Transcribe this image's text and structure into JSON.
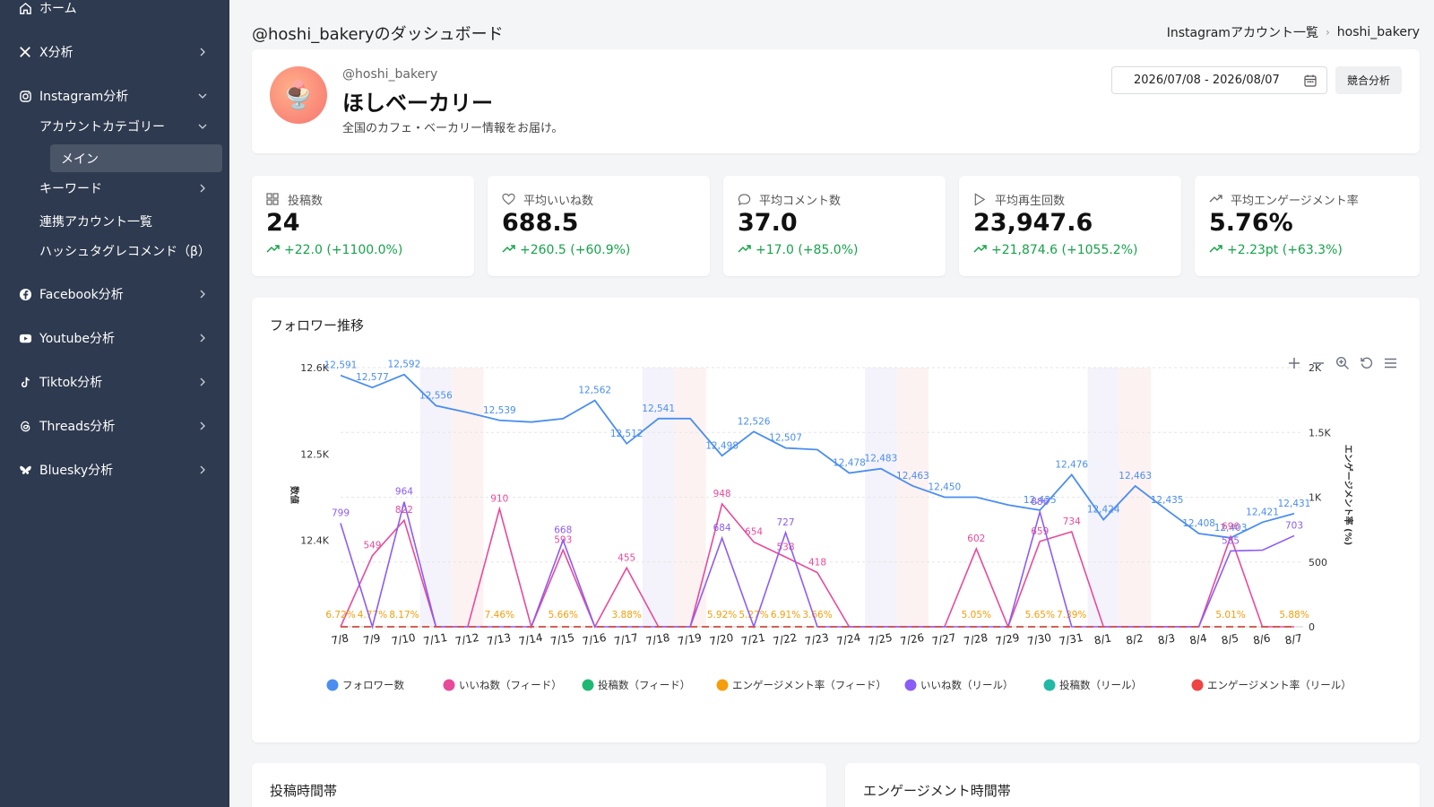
{
  "sidebar": {
    "home": "ホーム",
    "x": "X分析",
    "instagram": "Instagram分析",
    "category": "アカウントカテゴリー",
    "main": "メイン",
    "keyword": "キーワード",
    "linked": "連携アカウント一覧",
    "hashtag": "ハッシュタグレコメンド（β）",
    "facebook": "Facebook分析",
    "youtube": "Youtube分析",
    "tiktok": "Tiktok分析",
    "threads": "Threads分析",
    "bluesky": "Bluesky分析"
  },
  "header": {
    "title": "@hoshi_bakeryのダッシュボード",
    "breadcrumb_parent": "Instagramアカウント一覧",
    "breadcrumb_current": "hoshi_bakery"
  },
  "profile": {
    "handle": "@hoshi_bakery",
    "name": "ほしベーカリー",
    "description": "全国のカフェ・ベーカリー情報をお届け。",
    "date_range": "2026/07/08 - 2026/08/07",
    "compete_label": "競合分析",
    "avatar_emoji": "🍨"
  },
  "stats": [
    {
      "label": "投稿数",
      "value": "24",
      "delta": "+22.0 (+1100.0%)",
      "icon": "grid-icon"
    },
    {
      "label": "平均いいね数",
      "value": "688.5",
      "delta": "+260.5 (+60.9%)",
      "icon": "heart-icon"
    },
    {
      "label": "平均コメント数",
      "value": "37.0",
      "delta": "+17.0 (+85.0%)",
      "icon": "comment-icon"
    },
    {
      "label": "平均再生回数",
      "value": "23,947.6",
      "delta": "+21,874.6 (+1055.2%)",
      "icon": "play-icon"
    },
    {
      "label": "平均エンゲージメント率",
      "value": "5.76%",
      "delta": "+2.23pt (+63.3%)",
      "icon": "trend-icon"
    }
  ],
  "sections": {
    "post_time": "投稿時間帯",
    "engagement_time": "エンゲージメント時間帯"
  },
  "chart_data": {
    "type": "line",
    "title": "フォロワー推移",
    "ylabel_left": "数値",
    "ylabel_right": "エンゲージメント率 (%)",
    "left_ticks": [
      "12.6K",
      "12.5K",
      "12.4K"
    ],
    "right_ticks": [
      "2K",
      "1.5K",
      "1K",
      "500",
      "0"
    ],
    "ylim_left": [
      12300,
      12600
    ],
    "ylim_right": [
      0,
      2000
    ],
    "legend_position": "bottom",
    "categories": [
      "7/8",
      "7/9",
      "7/10",
      "7/11",
      "7/12",
      "7/13",
      "7/14",
      "7/15",
      "7/16",
      "7/17",
      "7/18",
      "7/19",
      "7/20",
      "7/21",
      "7/22",
      "7/23",
      "7/24",
      "7/25",
      "7/26",
      "7/27",
      "7/28",
      "7/29",
      "7/30",
      "7/31",
      "8/1",
      "8/2",
      "8/3",
      "8/4",
      "8/5",
      "8/6",
      "8/7"
    ],
    "series": [
      {
        "name": "フォロワー数",
        "color": "#4a8ef0",
        "axis": "left",
        "values": [
          12591,
          12577,
          12592,
          12556,
          12548,
          12539,
          12537,
          12541,
          12562,
          12512,
          12541,
          12541,
          12498,
          12526,
          12507,
          12505,
          12478,
          12483,
          12463,
          12450,
          12450,
          12441,
          12435,
          12476,
          12424,
          12463,
          12435,
          12408,
          12403,
          12421,
          12431
        ],
        "labels": [
          "12,591",
          "12,577",
          "12,592",
          "12,556",
          "",
          "12,539",
          "",
          "",
          "12,562",
          "12,512",
          "12,541",
          "",
          "12,498",
          "12,526",
          "12,507",
          "",
          "12,478",
          "12,483",
          "12,463",
          "12,450",
          "",
          "",
          "12,435",
          "12,476",
          "12,424",
          "12,463",
          "12,435",
          "12,408",
          "12,403",
          "12,421",
          "12,431"
        ]
      },
      {
        "name": "いいね数（フィード）",
        "color": "#e84a9a",
        "axis": "right",
        "values": [
          0,
          549,
          822,
          0,
          0,
          910,
          0,
          593,
          0,
          455,
          0,
          0,
          948,
          654,
          538,
          418,
          0,
          0,
          0,
          0,
          602,
          0,
          659,
          734,
          0,
          0,
          0,
          0,
          696,
          0,
          0
        ],
        "labels": [
          "",
          "549",
          "822",
          "",
          "",
          "910",
          "",
          "593",
          "",
          "455",
          "",
          "",
          "948",
          "654",
          "538",
          "418",
          "",
          "",
          "",
          "",
          "602",
          "",
          "659",
          "734",
          "",
          "",
          "",
          "",
          "696",
          "",
          ""
        ]
      },
      {
        "name": "投稿数（フィード）",
        "color": "#1fb873",
        "axis": "right",
        "values": [
          1,
          0,
          0,
          0,
          0,
          1,
          0,
          1,
          0,
          1,
          0,
          0,
          1,
          1,
          1,
          1,
          0,
          0,
          0,
          0,
          1,
          0,
          1,
          1,
          0,
          0,
          0,
          0,
          1,
          0,
          1
        ],
        "labels": []
      },
      {
        "name": "エンゲージメント率（フィード）",
        "color": "#f59e0b",
        "axis": "right",
        "values": [
          6.72,
          4.77,
          8.17,
          0,
          0,
          7.46,
          0,
          5.66,
          0,
          3.88,
          0,
          0,
          5.92,
          5.27,
          6.91,
          3.66,
          0,
          0,
          0,
          0,
          5.05,
          0,
          5.65,
          7.39,
          0,
          0,
          0,
          0,
          5.01,
          0,
          5.88
        ],
        "labels": [
          "6.72%",
          "4.77%",
          "8.17%",
          "",
          "",
          "7.46%",
          "",
          "5.66%",
          "",
          "3.88%",
          "",
          "",
          "5.92%",
          "5.27%",
          "6.91%",
          "3.66%",
          "",
          "",
          "",
          "",
          "5.05%",
          "",
          "5.65%",
          "7.39%",
          "",
          "",
          "",
          "",
          "5.01%",
          "",
          "5.88%"
        ]
      },
      {
        "name": "いいね数（リール）",
        "color": "#8b5cf6",
        "axis": "right",
        "values": [
          799,
          0,
          964,
          0,
          0,
          0,
          0,
          668,
          0,
          0,
          0,
          0,
          684,
          0,
          727,
          0,
          0,
          0,
          0,
          0,
          0,
          0,
          886,
          0,
          0,
          0,
          0,
          0,
          585,
          591,
          703
        ],
        "labels": [
          "799",
          "",
          "964",
          "",
          "",
          "",
          "",
          "668",
          "",
          "",
          "",
          "",
          "684",
          "",
          "727",
          "",
          "",
          "",
          "",
          "",
          "",
          "",
          "886",
          "",
          "",
          "",
          "",
          "",
          "585",
          "",
          "703"
        ]
      },
      {
        "name": "投稿数（リール）",
        "color": "#22b8a6",
        "axis": "right",
        "values": [
          1,
          0,
          1,
          0,
          0,
          0,
          0,
          1,
          0,
          0,
          0,
          0,
          1,
          0,
          1,
          0,
          0,
          0,
          0,
          0,
          0,
          0,
          1,
          0,
          0,
          0,
          0,
          0,
          1,
          1,
          1
        ],
        "labels": []
      },
      {
        "name": "エンゲージメント率（リール）",
        "color": "#ef4444",
        "axis": "right",
        "values": [
          6.72,
          0,
          8.17,
          0,
          0,
          0,
          0,
          5.66,
          0,
          0,
          0,
          0,
          5.92,
          0,
          6.91,
          0,
          0,
          0,
          0,
          0,
          0,
          0,
          5.65,
          7.39,
          0,
          0,
          0,
          0,
          5.01,
          0,
          5.88
        ],
        "labels": []
      }
    ]
  }
}
